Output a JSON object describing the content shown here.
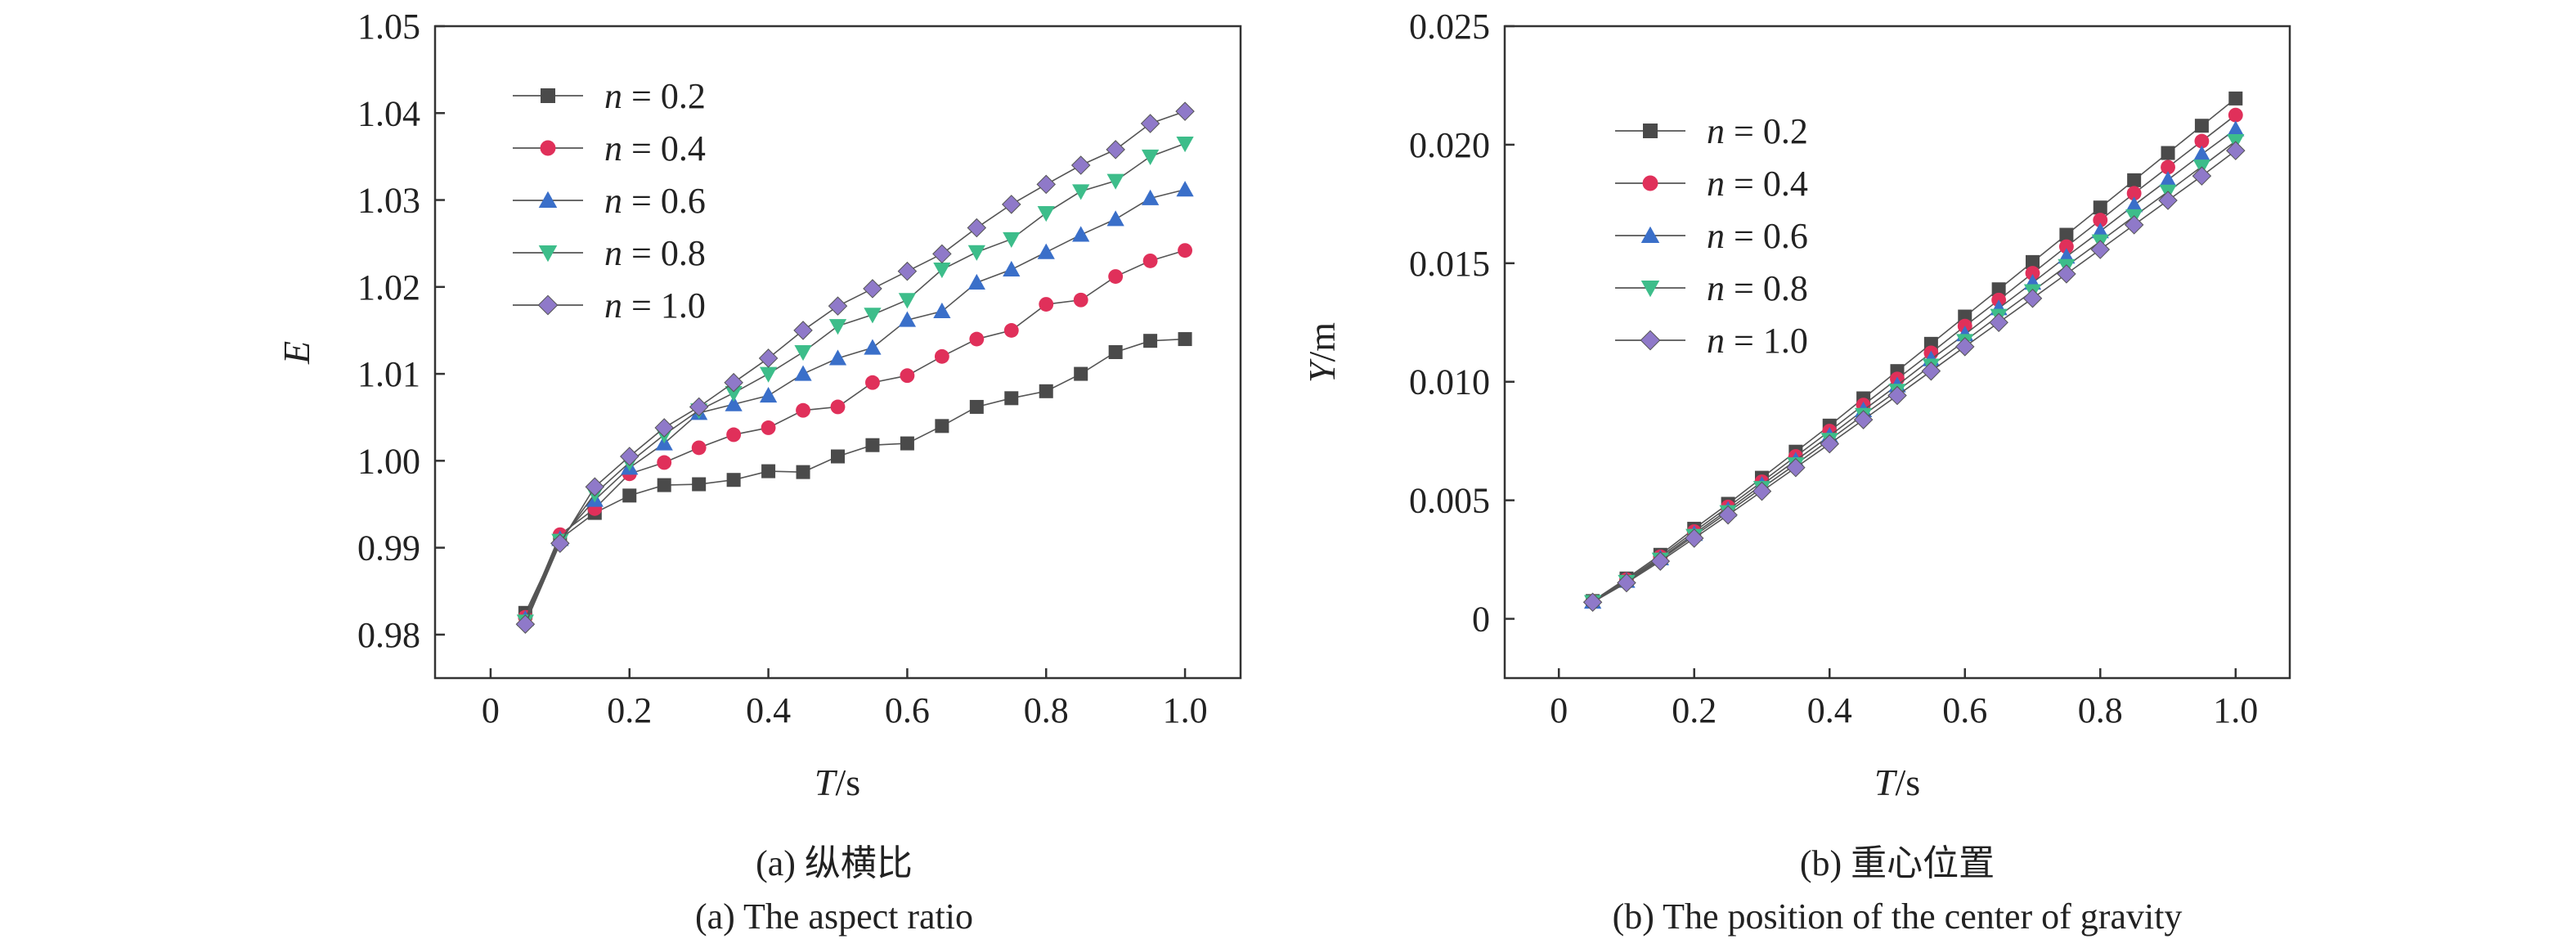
{
  "chart_data": [
    {
      "type": "line",
      "xlabel": "T/s",
      "ylabel": "E",
      "xlim": [
        -0.08,
        1.08
      ],
      "ylim": [
        0.975,
        1.05
      ],
      "xticks": [
        "0",
        "0.2",
        "0.4",
        "0.6",
        "0.8",
        "1.0"
      ],
      "yticks": [
        "0.98",
        "0.99",
        "1.00",
        "1.01",
        "1.02",
        "1.03",
        "1.04",
        "1.05"
      ],
      "caption_cn": "(a) 纵横比",
      "caption_en": "(a) The aspect ratio",
      "legend_position": "top-left",
      "x": [
        0.05,
        0.1,
        0.15,
        0.2,
        0.25,
        0.3,
        0.35,
        0.4,
        0.45,
        0.5,
        0.55,
        0.6,
        0.65,
        0.7,
        0.75,
        0.8,
        0.85,
        0.9,
        0.95,
        1.0
      ],
      "series": [
        {
          "name": "n = 0.2",
          "color": "#4a4a4a",
          "marker": "square",
          "values": [
            0.9825,
            0.991,
            0.994,
            0.996,
            0.9972,
            0.9973,
            0.9978,
            0.9988,
            0.9987,
            1.0005,
            1.0018,
            1.002,
            1.004,
            1.0062,
            1.0072,
            1.008,
            1.01,
            1.0125,
            1.0138,
            1.014
          ]
        },
        {
          "name": "n = 0.4",
          "color": "#e0305a",
          "marker": "circle",
          "values": [
            0.982,
            0.9915,
            0.9945,
            0.9985,
            0.9998,
            1.0015,
            1.003,
            1.0038,
            1.0058,
            1.0062,
            1.009,
            1.0098,
            1.012,
            1.014,
            1.015,
            1.018,
            1.0185,
            1.0212,
            1.023,
            1.0242
          ]
        },
        {
          "name": "n = 0.6",
          "color": "#3a6fc9",
          "marker": "triangle",
          "values": [
            0.9818,
            0.991,
            0.9955,
            0.9992,
            1.002,
            1.0055,
            1.0065,
            1.0075,
            1.01,
            1.0118,
            1.013,
            1.0162,
            1.0172,
            1.0205,
            1.022,
            1.024,
            1.026,
            1.0278,
            1.0302,
            1.0312
          ]
        },
        {
          "name": "n = 0.8",
          "color": "#3dbd8a",
          "marker": "triangle-down",
          "values": [
            0.9815,
            0.9908,
            0.9962,
            0.9998,
            1.003,
            1.0058,
            1.0078,
            1.01,
            1.0125,
            1.0155,
            1.0168,
            1.0185,
            1.022,
            1.024,
            1.0255,
            1.0285,
            1.031,
            1.0322,
            1.035,
            1.0365
          ]
        },
        {
          "name": "n = 1.0",
          "color": "#8f79c9",
          "marker": "diamond",
          "values": [
            0.9812,
            0.9905,
            0.997,
            1.0005,
            1.0038,
            1.0062,
            1.009,
            1.0118,
            1.015,
            1.0178,
            1.0198,
            1.0218,
            1.0238,
            1.0268,
            1.0295,
            1.0318,
            1.034,
            1.0358,
            1.0388,
            1.0402
          ]
        }
      ]
    },
    {
      "type": "line",
      "xlabel": "T/s",
      "ylabel": "Y/m",
      "xlim": [
        -0.08,
        1.08
      ],
      "ylim": [
        -0.0025,
        0.025
      ],
      "xticks": [
        "0",
        "0.2",
        "0.4",
        "0.6",
        "0.8",
        "1.0"
      ],
      "yticks": [
        "0",
        "0.005",
        "0.010",
        "0.015",
        "0.020",
        "0.025"
      ],
      "caption_cn": "(b) 重心位置",
      "caption_en": "(b) The position of the center of gravity",
      "legend_position": "top-left",
      "x": [
        0.05,
        0.1,
        0.15,
        0.2,
        0.25,
        0.3,
        0.35,
        0.4,
        0.45,
        0.5,
        0.55,
        0.6,
        0.65,
        0.7,
        0.75,
        0.8,
        0.85,
        0.9,
        0.95,
        1.0
      ],
      "series": [
        {
          "name": "n = 0.2",
          "color": "#4a4a4a",
          "marker": "square",
          "values": [
            0.00075,
            0.0017,
            0.0027,
            0.0038,
            0.00485,
            0.00595,
            0.00705,
            0.00815,
            0.0093,
            0.01045,
            0.0116,
            0.01275,
            0.0139,
            0.01505,
            0.0162,
            0.01735,
            0.0185,
            0.01965,
            0.0208,
            0.02195
          ]
        },
        {
          "name": "n = 0.4",
          "color": "#e0305a",
          "marker": "circle",
          "values": [
            0.00073,
            0.00165,
            0.00262,
            0.00368,
            0.00472,
            0.00578,
            0.00685,
            0.00792,
            0.00902,
            0.01012,
            0.01122,
            0.01235,
            0.01345,
            0.01458,
            0.0157,
            0.01682,
            0.01795,
            0.01905,
            0.02015,
            0.02125
          ]
        },
        {
          "name": "n = 0.6",
          "color": "#3a6fc9",
          "marker": "triangle",
          "values": [
            0.00072,
            0.0016,
            0.00255,
            0.00358,
            0.0046,
            0.00565,
            0.00668,
            0.00772,
            0.0088,
            0.00985,
            0.01095,
            0.012,
            0.0131,
            0.01418,
            0.01528,
            0.01635,
            0.01745,
            0.01852,
            0.0196,
            0.02065
          ]
        },
        {
          "name": "n = 0.8",
          "color": "#3dbd8a",
          "marker": "triangle-down",
          "values": [
            0.00071,
            0.00156,
            0.0025,
            0.0035,
            0.0045,
            0.00552,
            0.00652,
            0.00755,
            0.0086,
            0.00962,
            0.01068,
            0.01172,
            0.01278,
            0.01382,
            0.01488,
            0.01592,
            0.01698,
            0.01802,
            0.01908,
            0.02015
          ]
        },
        {
          "name": "n = 1.0",
          "color": "#8f79c9",
          "marker": "diamond",
          "values": [
            0.0007,
            0.00152,
            0.00243,
            0.0034,
            0.00438,
            0.00538,
            0.00638,
            0.00738,
            0.0084,
            0.00942,
            0.01045,
            0.01148,
            0.0125,
            0.01352,
            0.01455,
            0.01558,
            0.01662,
            0.01765,
            0.01868,
            0.01975
          ]
        }
      ]
    }
  ]
}
